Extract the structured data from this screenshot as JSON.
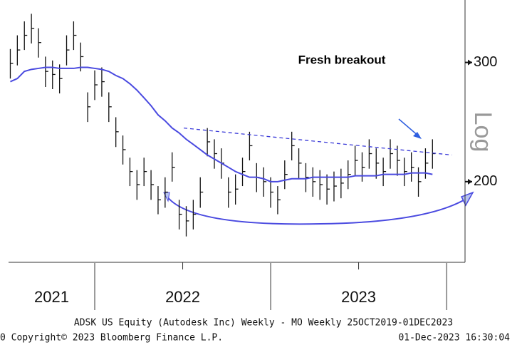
{
  "chart_data": {
    "type": "ohlc",
    "annotation": "Fresh breakout",
    "scale_label": "Log",
    "log_scale": true,
    "footer_line1": "ADSK US Equity (Autodesk Inc) Weekly - MO  Weekly 25OCT2019-01DEC2023",
    "footer_left": "0 Copyright© 2023 Bloomberg Finance L.P.",
    "footer_right": "01-Dec-2023 16:30:04",
    "xlim": [
      2021.51,
      2024.105
    ],
    "ylim": [
      152,
      371
    ],
    "yticks": [
      200,
      300
    ],
    "year_boundaries": [
      2022,
      2023,
      2024
    ],
    "minor_xticks": [
      2022.5,
      2023.5
    ],
    "year_labels": [
      2021,
      2022,
      2023
    ],
    "x": [
      2021.52,
      2021.56,
      2021.6,
      2021.64,
      2021.68,
      2021.72,
      2021.76,
      2021.8,
      2021.84,
      2021.88,
      2021.92,
      2021.96,
      2022.0,
      2022.04,
      2022.08,
      2022.12,
      2022.16,
      2022.2,
      2022.24,
      2022.28,
      2022.32,
      2022.36,
      2022.4,
      2022.44,
      2022.48,
      2022.52,
      2022.56,
      2022.6,
      2022.64,
      2022.68,
      2022.72,
      2022.76,
      2022.8,
      2022.84,
      2022.88,
      2022.92,
      2022.96,
      2023.0,
      2023.04,
      2023.08,
      2023.12,
      2023.16,
      2023.2,
      2023.24,
      2023.28,
      2023.32,
      2023.36,
      2023.4,
      2023.44,
      2023.48,
      2023.52,
      2023.56,
      2023.6,
      2023.64,
      2023.68,
      2023.72,
      2023.76,
      2023.8,
      2023.84,
      2023.88,
      2023.92
    ],
    "bars": {
      "color": "#111111",
      "high": [
        314,
        329,
        345,
        354,
        337,
        306,
        302,
        298,
        329,
        345,
        321,
        271,
        292,
        295,
        271,
        249,
        234,
        217,
        208,
        217,
        208,
        197,
        203,
        221,
        188,
        184,
        188,
        203,
        240,
        231,
        224,
        203,
        205,
        217,
        237,
        213,
        210,
        203,
        197,
        215,
        237,
        224,
        213,
        210,
        208,
        205,
        207,
        209,
        215,
        226,
        221,
        231,
        224,
        217,
        231,
        226,
        217,
        221,
        210,
        224,
        231
      ],
      "low": [
        284,
        297,
        313,
        320,
        305,
        276,
        274,
        270,
        297,
        313,
        291,
        245,
        264,
        267,
        245,
        225,
        212,
        197,
        188,
        197,
        188,
        179,
        183,
        200,
        170,
        166,
        170,
        183,
        218,
        209,
        202,
        183,
        185,
        197,
        215,
        193,
        190,
        183,
        179,
        195,
        215,
        202,
        193,
        190,
        188,
        185,
        187,
        189,
        195,
        204,
        200,
        209,
        202,
        197,
        209,
        204,
        197,
        200,
        190,
        202,
        209
      ],
      "close": [
        299,
        313,
        329,
        337,
        321,
        291,
        288,
        284,
        313,
        329,
        306,
        258,
        278,
        281,
        258,
        237,
        223,
        207,
        198,
        207,
        198,
        188,
        193,
        210,
        179,
        175,
        179,
        193,
        229,
        220,
        213,
        193,
        195,
        207,
        226,
        203,
        200,
        193,
        188,
        205,
        226,
        213,
        203,
        200,
        198,
        195,
        197,
        199,
        205,
        215,
        210,
        220,
        213,
        207,
        220,
        215,
        207,
        210,
        200,
        213,
        220
      ]
    },
    "moving_average": {
      "color": "#4a4ae0",
      "values": [
        281,
        284,
        291,
        293,
        294,
        295,
        295,
        294,
        294,
        294,
        295,
        295,
        294,
        293,
        291,
        287,
        284,
        279,
        273,
        266,
        259,
        251,
        246,
        240,
        236,
        231,
        227,
        223,
        219,
        216,
        213,
        210,
        207,
        205,
        203,
        203,
        202,
        200,
        200,
        201,
        202,
        202,
        202,
        203,
        203,
        203,
        203,
        203,
        203,
        204,
        204,
        204,
        204,
        205,
        205,
        205,
        205,
        206,
        206,
        206,
        205
      ]
    },
    "trendline": {
      "x": [
        2022.506,
        2024.03
      ],
      "values": [
        240,
        219
      ],
      "color": "#3a3ad8"
    }
  }
}
